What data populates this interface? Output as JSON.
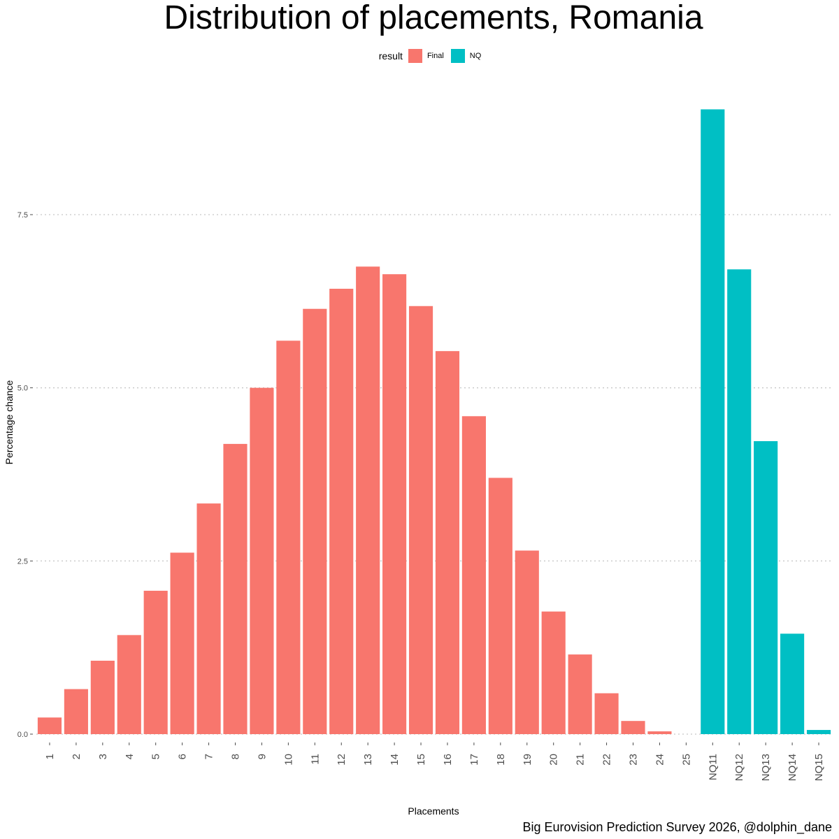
{
  "chart_data": {
    "type": "bar",
    "title": "Distribution of placements, Romania",
    "xlabel": "Placements",
    "ylabel": "Percentage chance",
    "caption": "Big Eurovision Prediction Survey 2026, @dolphin_dane",
    "legend": {
      "title": "result",
      "placement": "top",
      "entries": [
        {
          "name": "Final",
          "color": "#F8766D"
        },
        {
          "name": "NQ",
          "color": "#00BFC4"
        }
      ]
    },
    "ylim": [
      -0.1,
      9.0
    ],
    "yticks": [
      {
        "value": 0.0,
        "label": "0.0"
      },
      {
        "value": 2.5,
        "label": "2.5"
      },
      {
        "value": 5.0,
        "label": "5.0"
      },
      {
        "value": 7.5,
        "label": "7.5"
      }
    ],
    "grid": "horizontal dotted",
    "categories": [
      "1",
      "2",
      "3",
      "4",
      "5",
      "6",
      "7",
      "8",
      "9",
      "10",
      "11",
      "12",
      "13",
      "14",
      "15",
      "16",
      "17",
      "18",
      "19",
      "20",
      "21",
      "22",
      "23",
      "24",
      "25",
      "NQ11",
      "NQ12",
      "NQ13",
      "NQ14",
      "NQ15"
    ],
    "values": [
      0.24,
      0.65,
      1.06,
      1.43,
      2.07,
      2.62,
      3.33,
      4.19,
      5.0,
      5.68,
      6.14,
      6.43,
      6.75,
      6.64,
      6.18,
      5.53,
      4.59,
      3.7,
      2.65,
      1.77,
      1.15,
      0.59,
      0.19,
      0.04,
      0.0,
      9.02,
      6.71,
      4.23,
      1.45,
      0.06
    ],
    "groups": [
      "Final",
      "Final",
      "Final",
      "Final",
      "Final",
      "Final",
      "Final",
      "Final",
      "Final",
      "Final",
      "Final",
      "Final",
      "Final",
      "Final",
      "Final",
      "Final",
      "Final",
      "Final",
      "Final",
      "Final",
      "Final",
      "Final",
      "Final",
      "Final",
      "Final",
      "NQ",
      "NQ",
      "NQ",
      "NQ",
      "NQ"
    ]
  }
}
